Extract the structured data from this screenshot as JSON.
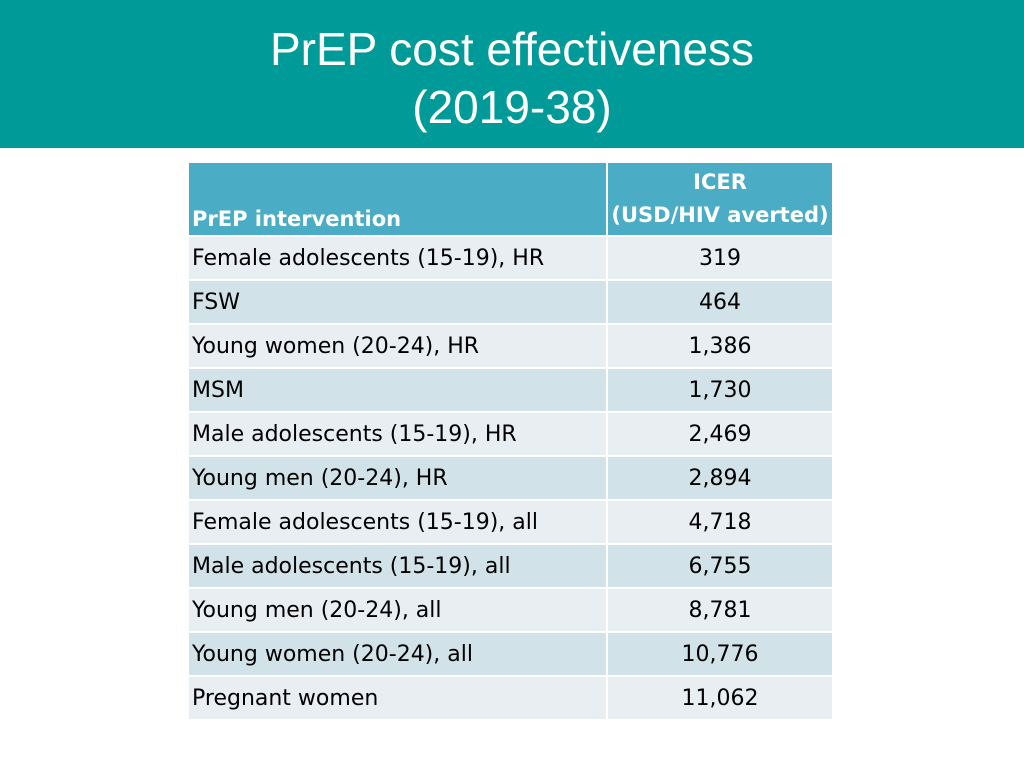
{
  "slide": {
    "title_line1": "PrEP cost effectiveness",
    "title_line2": "(2019-38)"
  },
  "table": {
    "header": {
      "col1": "PrEP intervention",
      "col2_line1": "ICER",
      "col2_line2": "(USD/HIV averted)"
    },
    "rows": [
      {
        "intervention": "Female adolescents (15-19), HR",
        "icer": "319"
      },
      {
        "intervention": "FSW",
        "icer": "464"
      },
      {
        "intervention": "Young women (20-24), HR",
        "icer": "1,386"
      },
      {
        "intervention": "MSM",
        "icer": "1,730"
      },
      {
        "intervention": "Male adolescents (15-19), HR",
        "icer": "2,469"
      },
      {
        "intervention": "Young men (20-24), HR",
        "icer": "2,894"
      },
      {
        "intervention": "Female adolescents (15-19), all",
        "icer": "4,718"
      },
      {
        "intervention": "Male adolescents (15-19), all",
        "icer": "6,755"
      },
      {
        "intervention": "Young men (20-24), all",
        "icer": "8,781"
      },
      {
        "intervention": "Young women (20-24), all",
        "icer": "10,776"
      },
      {
        "intervention": "Pregnant women",
        "icer": "11,062"
      }
    ]
  },
  "colors": {
    "title_bar": "#009b98",
    "header_bg": "#4bacc6",
    "row_light": "#e9eef3",
    "row_dark": "#d1e3e8"
  }
}
